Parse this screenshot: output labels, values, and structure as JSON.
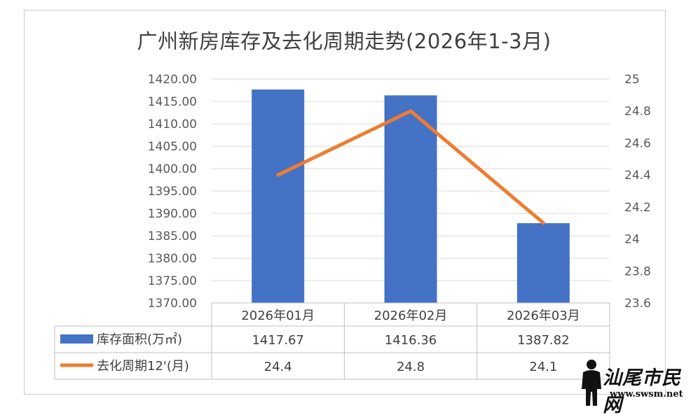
{
  "chart_data": {
    "type": "bar",
    "title": "广州新房库存及去化周期走势(2026年1-3月)",
    "categories": [
      "2026年01月",
      "2026年02月",
      "2026年03月"
    ],
    "series": [
      {
        "name": "库存面积(万㎡)",
        "type": "bar",
        "axis": "left",
        "color": "#4472C4",
        "values": [
          1417.67,
          1416.36,
          1387.82
        ],
        "value_labels": [
          "1417.67",
          "1416.36",
          "1387.82"
        ]
      },
      {
        "name": "去化周期12'(月)",
        "type": "line",
        "axis": "right",
        "color": "#ED7D31",
        "values": [
          24.4,
          24.8,
          24.1
        ],
        "value_labels": [
          "24.4",
          "24.8",
          "24.1"
        ]
      }
    ],
    "y_left": {
      "range": [
        1370,
        1420
      ],
      "ticks": [
        "1420.00",
        "1415.00",
        "1410.00",
        "1405.00",
        "1400.00",
        "1395.00",
        "1390.00",
        "1385.00",
        "1380.00",
        "1375.00",
        "1370.00"
      ]
    },
    "y_right": {
      "range": [
        23.6,
        25
      ],
      "ticks": [
        "25",
        "24.8",
        "24.6",
        "24.4",
        "24.2",
        "24",
        "23.8",
        "23.6"
      ]
    },
    "grid": true,
    "legend": "data-table"
  },
  "watermark": {
    "text": "汕尾市民网",
    "url": "www.swsm.net"
  }
}
